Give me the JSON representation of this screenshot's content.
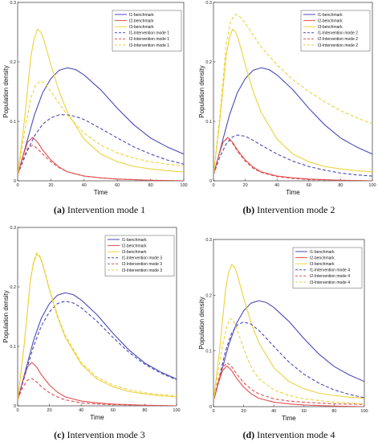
{
  "chart_data": [
    {
      "type": "line",
      "panel": "a",
      "caption_tag": "(a)",
      "caption_text": " Intervention mode 1",
      "xlabel": "Time",
      "ylabel": "Population density",
      "xlim": [
        0,
        100
      ],
      "ylim": [
        0,
        0.3
      ],
      "xticks": [
        "0",
        "20",
        "40",
        "60",
        "80",
        "100"
      ],
      "yticks": [
        "0",
        "0.1",
        "0.2",
        "0.3"
      ],
      "legend_position": "top-right",
      "series": [
        {
          "name": "I1-benchmark",
          "color": "#4a4ab8",
          "dash": "solid",
          "x": [
            0,
            5,
            10,
            15,
            20,
            25,
            30,
            35,
            40,
            50,
            60,
            70,
            80,
            90,
            100
          ],
          "y": [
            0.01,
            0.06,
            0.11,
            0.148,
            0.172,
            0.186,
            0.19,
            0.187,
            0.178,
            0.153,
            0.122,
            0.094,
            0.072,
            0.057,
            0.045
          ]
        },
        {
          "name": "I2-benchmark",
          "color": "#e05050",
          "dash": "solid",
          "x": [
            0,
            3,
            6,
            9,
            12,
            15,
            20,
            25,
            30,
            40,
            50,
            60,
            80,
            100
          ],
          "y": [
            0.01,
            0.04,
            0.065,
            0.073,
            0.065,
            0.052,
            0.035,
            0.023,
            0.015,
            0.008,
            0.005,
            0.003,
            0.001,
            0.0
          ]
        },
        {
          "name": "I3-benchmark",
          "color": "#ecd23c",
          "dash": "solid",
          "x": [
            0,
            4,
            8,
            10,
            12,
            14,
            16,
            20,
            25,
            30,
            40,
            50,
            60,
            70,
            80,
            90,
            100
          ],
          "y": [
            0.01,
            0.1,
            0.21,
            0.24,
            0.255,
            0.25,
            0.235,
            0.195,
            0.15,
            0.115,
            0.07,
            0.045,
            0.032,
            0.024,
            0.02,
            0.017,
            0.015
          ]
        },
        {
          "name": "I1-Intervention mode 1",
          "color": "#4a4ab8",
          "dash": "dash",
          "x": [
            0,
            5,
            10,
            15,
            20,
            25,
            30,
            35,
            40,
            50,
            60,
            70,
            80,
            90,
            100
          ],
          "y": [
            0.01,
            0.045,
            0.075,
            0.095,
            0.106,
            0.111,
            0.111,
            0.108,
            0.103,
            0.088,
            0.072,
            0.057,
            0.045,
            0.035,
            0.028
          ]
        },
        {
          "name": "I2-Intervention mode 1",
          "color": "#e05050",
          "dash": "dash",
          "x": [
            0,
            3,
            6,
            9,
            12,
            15,
            20,
            25,
            30,
            40,
            50,
            60,
            80,
            100
          ],
          "y": [
            0.01,
            0.035,
            0.055,
            0.06,
            0.054,
            0.045,
            0.032,
            0.022,
            0.015,
            0.008,
            0.005,
            0.003,
            0.001,
            0.0
          ]
        },
        {
          "name": "I3-Intervention mode 1",
          "color": "#ecd23c",
          "dash": "dash",
          "x": [
            0,
            4,
            8,
            11,
            14,
            17,
            20,
            25,
            30,
            40,
            50,
            60,
            70,
            80,
            90,
            100
          ],
          "y": [
            0.01,
            0.08,
            0.14,
            0.162,
            0.168,
            0.162,
            0.15,
            0.13,
            0.11,
            0.08,
            0.06,
            0.047,
            0.038,
            0.032,
            0.028,
            0.025
          ]
        }
      ]
    },
    {
      "type": "line",
      "panel": "b",
      "caption_tag": "(b)",
      "caption_text": " Intervention mode 2",
      "xlabel": "Time",
      "ylabel": "Population density",
      "xlim": [
        0,
        100
      ],
      "ylim": [
        0,
        0.3
      ],
      "xticks": [
        "0",
        "20",
        "40",
        "60",
        "80",
        "100"
      ],
      "yticks": [
        "0",
        "0.1",
        "0.2",
        "0.3"
      ],
      "legend_position": "top-right",
      "series": [
        {
          "name": "I1-benchmark",
          "color": "#4a4ab8",
          "dash": "solid",
          "x": [
            0,
            5,
            10,
            15,
            20,
            25,
            30,
            35,
            40,
            50,
            60,
            70,
            80,
            90,
            100
          ],
          "y": [
            0.01,
            0.06,
            0.11,
            0.148,
            0.172,
            0.186,
            0.19,
            0.187,
            0.178,
            0.153,
            0.122,
            0.094,
            0.072,
            0.057,
            0.045
          ]
        },
        {
          "name": "I2-benchmark",
          "color": "#e05050",
          "dash": "solid",
          "x": [
            0,
            3,
            6,
            9,
            12,
            15,
            20,
            25,
            30,
            40,
            50,
            60,
            80,
            100
          ],
          "y": [
            0.01,
            0.04,
            0.065,
            0.073,
            0.065,
            0.052,
            0.035,
            0.023,
            0.015,
            0.008,
            0.005,
            0.003,
            0.001,
            0.0
          ]
        },
        {
          "name": "I3-benchmark",
          "color": "#ecd23c",
          "dash": "solid",
          "x": [
            0,
            4,
            8,
            10,
            12,
            14,
            16,
            20,
            25,
            30,
            40,
            50,
            60,
            70,
            80,
            90,
            100
          ],
          "y": [
            0.01,
            0.1,
            0.21,
            0.24,
            0.255,
            0.25,
            0.235,
            0.195,
            0.15,
            0.115,
            0.07,
            0.045,
            0.032,
            0.024,
            0.02,
            0.017,
            0.015
          ]
        },
        {
          "name": "I1-Intervention mode 2",
          "color": "#4a4ab8",
          "dash": "dash",
          "x": [
            0,
            4,
            8,
            12,
            15,
            20,
            25,
            30,
            40,
            50,
            60,
            70,
            80,
            90,
            100
          ],
          "y": [
            0.01,
            0.04,
            0.062,
            0.074,
            0.077,
            0.075,
            0.068,
            0.06,
            0.045,
            0.033,
            0.024,
            0.018,
            0.013,
            0.01,
            0.008
          ]
        },
        {
          "name": "I2-Intervention mode 2",
          "color": "#e05050",
          "dash": "dash",
          "x": [
            0,
            3,
            6,
            9,
            12,
            15,
            20,
            25,
            30,
            40,
            50,
            60,
            80,
            100
          ],
          "y": [
            0.01,
            0.04,
            0.065,
            0.072,
            0.063,
            0.05,
            0.033,
            0.021,
            0.014,
            0.007,
            0.004,
            0.002,
            0.001,
            0.0
          ]
        },
        {
          "name": "I3-Intervention mode 2",
          "color": "#ecd23c",
          "dash": "dash",
          "x": [
            0,
            4,
            8,
            11,
            14,
            17,
            20,
            25,
            30,
            40,
            50,
            60,
            70,
            80,
            90,
            100
          ],
          "y": [
            0.01,
            0.11,
            0.23,
            0.27,
            0.28,
            0.275,
            0.265,
            0.245,
            0.225,
            0.195,
            0.17,
            0.15,
            0.133,
            0.118,
            0.106,
            0.096
          ]
        }
      ]
    },
    {
      "type": "line",
      "panel": "c",
      "caption_tag": "(c)",
      "caption_text": " Intervention mode 3",
      "xlabel": "Time",
      "ylabel": "Population density",
      "xlim": [
        0,
        100
      ],
      "ylim": [
        0,
        0.3
      ],
      "xticks": [
        "0",
        "20",
        "40",
        "60",
        "80",
        "100"
      ],
      "yticks": [
        "0",
        "0.1",
        "0.2",
        "0.3"
      ],
      "legend_position": "top-right",
      "series": [
        {
          "name": "I1-benchmark",
          "color": "#4a4ab8",
          "dash": "solid",
          "x": [
            0,
            5,
            10,
            15,
            20,
            25,
            30,
            35,
            40,
            50,
            60,
            70,
            80,
            90,
            100
          ],
          "y": [
            0.01,
            0.06,
            0.11,
            0.148,
            0.172,
            0.186,
            0.19,
            0.187,
            0.178,
            0.153,
            0.122,
            0.094,
            0.072,
            0.057,
            0.045
          ]
        },
        {
          "name": "I2-benchmark",
          "color": "#e05050",
          "dash": "solid",
          "x": [
            0,
            3,
            6,
            9,
            12,
            15,
            20,
            25,
            30,
            40,
            50,
            60,
            80,
            100
          ],
          "y": [
            0.01,
            0.04,
            0.065,
            0.073,
            0.065,
            0.052,
            0.035,
            0.023,
            0.015,
            0.008,
            0.005,
            0.003,
            0.001,
            0.0
          ]
        },
        {
          "name": "I3-benchmark",
          "color": "#ecd23c",
          "dash": "solid",
          "x": [
            0,
            4,
            8,
            10,
            12,
            14,
            16,
            20,
            25,
            30,
            40,
            50,
            60,
            70,
            80,
            90,
            100
          ],
          "y": [
            0.01,
            0.1,
            0.21,
            0.24,
            0.255,
            0.25,
            0.235,
            0.195,
            0.15,
            0.115,
            0.07,
            0.045,
            0.032,
            0.024,
            0.02,
            0.017,
            0.015
          ]
        },
        {
          "name": "I1-Intervention mode 3",
          "color": "#4a4ab8",
          "dash": "dash",
          "x": [
            0,
            5,
            10,
            15,
            20,
            25,
            30,
            35,
            40,
            50,
            60,
            70,
            80,
            90,
            100
          ],
          "y": [
            0.01,
            0.055,
            0.1,
            0.135,
            0.158,
            0.172,
            0.176,
            0.173,
            0.165,
            0.142,
            0.115,
            0.09,
            0.07,
            0.055,
            0.044
          ]
        },
        {
          "name": "I2-Intervention mode 3",
          "color": "#e05050",
          "dash": "dash",
          "x": [
            0,
            3,
            6,
            9,
            12,
            15,
            20,
            25,
            30,
            40,
            50,
            60,
            80,
            100
          ],
          "y": [
            0.01,
            0.03,
            0.043,
            0.046,
            0.04,
            0.032,
            0.022,
            0.015,
            0.01,
            0.005,
            0.003,
            0.002,
            0.001,
            0.0
          ]
        },
        {
          "name": "I3-Intervention mode 3",
          "color": "#ecd23c",
          "dash": "dash",
          "x": [
            0,
            4,
            8,
            10,
            12,
            14,
            16,
            20,
            25,
            30,
            40,
            50,
            60,
            70,
            80,
            90,
            100
          ],
          "y": [
            0.01,
            0.1,
            0.212,
            0.243,
            0.257,
            0.252,
            0.237,
            0.197,
            0.153,
            0.118,
            0.073,
            0.048,
            0.035,
            0.027,
            0.022,
            0.019,
            0.017
          ]
        }
      ]
    },
    {
      "type": "line",
      "panel": "d",
      "caption_tag": "(d)",
      "caption_text": " Intervention mode 4",
      "xlabel": "Time",
      "ylabel": "Population density",
      "xlim": [
        0,
        100
      ],
      "ylim": [
        0,
        0.3
      ],
      "xticks": [
        "0",
        "20",
        "40",
        "60",
        "80",
        "100"
      ],
      "yticks": [
        "0",
        "0.1",
        "0.2",
        "0.3"
      ],
      "legend_position": "top-right",
      "series": [
        {
          "name": "I1-benchmark",
          "color": "#4a4ab8",
          "dash": "solid",
          "x": [
            0,
            5,
            10,
            15,
            20,
            25,
            30,
            35,
            40,
            50,
            60,
            70,
            80,
            90,
            100
          ],
          "y": [
            0.01,
            0.06,
            0.11,
            0.148,
            0.172,
            0.186,
            0.19,
            0.187,
            0.178,
            0.153,
            0.122,
            0.094,
            0.072,
            0.057,
            0.045
          ]
        },
        {
          "name": "I2-benchmark",
          "color": "#e05050",
          "dash": "solid",
          "x": [
            0,
            3,
            6,
            9,
            12,
            15,
            20,
            25,
            30,
            40,
            50,
            60,
            80,
            100
          ],
          "y": [
            0.01,
            0.04,
            0.065,
            0.073,
            0.065,
            0.052,
            0.035,
            0.023,
            0.015,
            0.008,
            0.005,
            0.003,
            0.001,
            0.0
          ]
        },
        {
          "name": "I3-benchmark",
          "color": "#ecd23c",
          "dash": "solid",
          "x": [
            0,
            4,
            8,
            10,
            12,
            14,
            16,
            20,
            25,
            30,
            40,
            50,
            60,
            70,
            80,
            90,
            100
          ],
          "y": [
            0.01,
            0.1,
            0.21,
            0.24,
            0.255,
            0.25,
            0.235,
            0.195,
            0.15,
            0.115,
            0.07,
            0.045,
            0.032,
            0.024,
            0.02,
            0.017,
            0.015
          ]
        },
        {
          "name": "I1-Intervention mode 4",
          "color": "#4a4ab8",
          "dash": "dash",
          "x": [
            0,
            4,
            8,
            12,
            16,
            20,
            25,
            30,
            35,
            40,
            50,
            60,
            70,
            80,
            90,
            100
          ],
          "y": [
            0.01,
            0.055,
            0.1,
            0.132,
            0.147,
            0.152,
            0.148,
            0.137,
            0.123,
            0.108,
            0.08,
            0.058,
            0.042,
            0.03,
            0.022,
            0.016
          ]
        },
        {
          "name": "I2-Intervention mode 4",
          "color": "#e05050",
          "dash": "dash",
          "x": [
            0,
            3,
            6,
            9,
            12,
            15,
            20,
            25,
            30,
            40,
            50,
            60,
            80,
            100
          ],
          "y": [
            0.01,
            0.045,
            0.07,
            0.079,
            0.072,
            0.06,
            0.043,
            0.031,
            0.023,
            0.014,
            0.01,
            0.008,
            0.005,
            0.004
          ]
        },
        {
          "name": "I3-Intervention mode 4",
          "color": "#ecd23c",
          "dash": "dash",
          "x": [
            0,
            3,
            6,
            9,
            11,
            13,
            15,
            18,
            22,
            26,
            30,
            40,
            50,
            60,
            80,
            100
          ],
          "y": [
            0.01,
            0.06,
            0.11,
            0.145,
            0.158,
            0.155,
            0.143,
            0.12,
            0.09,
            0.066,
            0.05,
            0.03,
            0.02,
            0.014,
            0.008,
            0.005
          ]
        }
      ]
    }
  ]
}
